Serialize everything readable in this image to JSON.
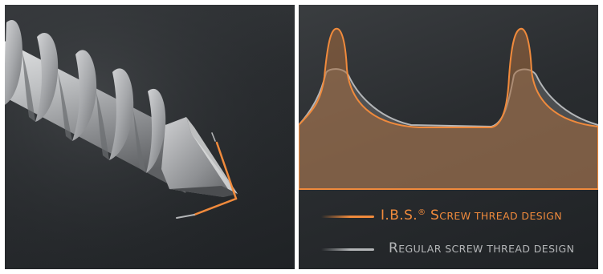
{
  "colors": {
    "ibs": "#f08a3c",
    "regular": "#b4b6b8",
    "background": "#2b2e31"
  },
  "legend": {
    "ibs": {
      "prefix": "I.B.S.",
      "superscript": "®",
      "initial": "S",
      "rest": "CREW THREAD DESIGN"
    },
    "regular": {
      "initial": "R",
      "rest": "EGULAR SCREW THREAD DESIGN"
    }
  }
}
